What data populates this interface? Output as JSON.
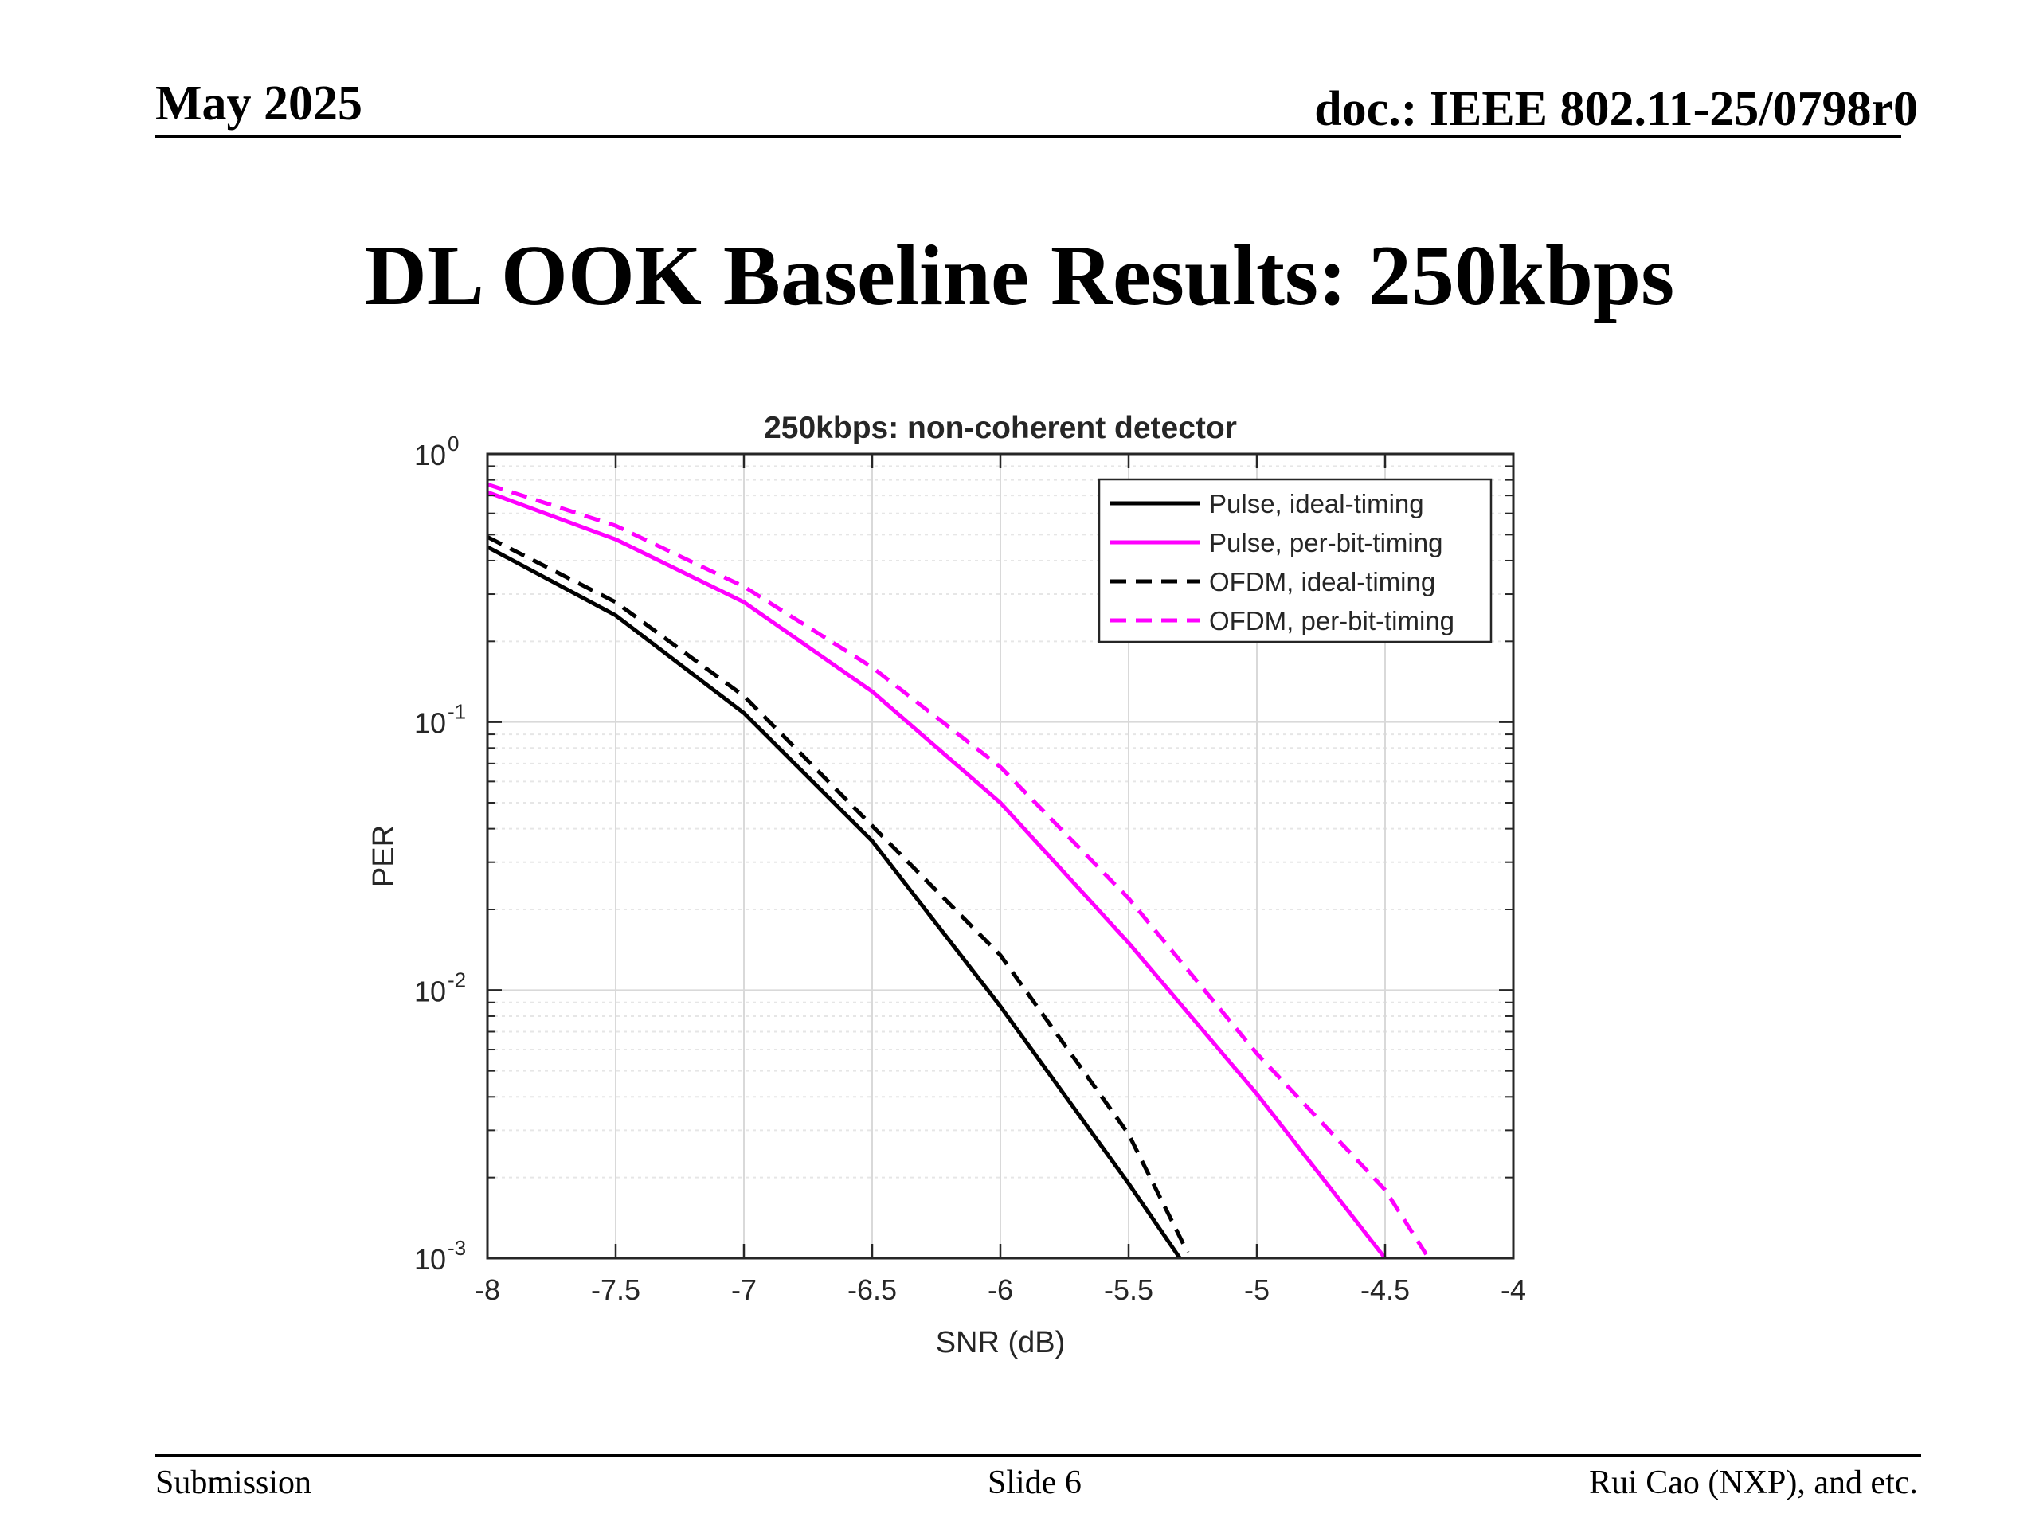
{
  "header": {
    "date": "May 2025",
    "doc_id": "doc.: IEEE 802.11-25/0798r0"
  },
  "slide_title": "DL OOK Baseline Results: 250kbps",
  "footer": {
    "left": "Submission",
    "center": "Slide 6",
    "right": "Rui Cao (NXP), and etc."
  },
  "chart_data": {
    "type": "line",
    "title": "250kbps: non-coherent detector",
    "xlabel": "SNR (dB)",
    "ylabel": "PER",
    "xlim": [
      -8,
      -4
    ],
    "ylim": [
      0.001,
      1
    ],
    "yscale": "log",
    "grid": true,
    "legend_position": "top-right",
    "xticks": [
      -8,
      -7.5,
      -7,
      -6.5,
      -6,
      -5.5,
      -5,
      -4.5,
      -4
    ],
    "xtick_labels": [
      "-8",
      "-7.5",
      "-7",
      "-6.5",
      "-6",
      "-5.5",
      "-5",
      "-4.5",
      "-4"
    ],
    "ytick_labels": [
      {
        "value": 1,
        "base": "10",
        "exp": "0"
      },
      {
        "value": 0.1,
        "base": "10",
        "exp": "-1"
      },
      {
        "value": 0.01,
        "base": "10",
        "exp": "-2"
      },
      {
        "value": 0.001,
        "base": "10",
        "exp": "-3"
      }
    ],
    "series": [
      {
        "name": "Pulse, ideal-timing",
        "color": "#000000",
        "dash": "solid",
        "x": [
          -8,
          -7.5,
          -7,
          -6.5,
          -6,
          -5.5,
          -5.3
        ],
        "y": [
          0.45,
          0.25,
          0.108,
          0.036,
          0.0087,
          0.0019,
          0.001
        ]
      },
      {
        "name": "Pulse, per-bit-timing",
        "color": "#ff00ff",
        "dash": "solid",
        "x": [
          -8,
          -7.5,
          -7,
          -6.5,
          -6,
          -5.5,
          -5,
          -4.5
        ],
        "y": [
          0.72,
          0.48,
          0.28,
          0.13,
          0.05,
          0.015,
          0.0041,
          0.001
        ]
      },
      {
        "name": "OFDM, ideal-timing",
        "color": "#000000",
        "dash": "dashed",
        "x": [
          -8,
          -7.5,
          -7,
          -6.5,
          -6,
          -5.5,
          -5.27
        ],
        "y": [
          0.49,
          0.28,
          0.125,
          0.041,
          0.0135,
          0.0029,
          0.00105
        ]
      },
      {
        "name": "OFDM, per-bit-timing",
        "color": "#ff00ff",
        "dash": "dashed",
        "x": [
          -8,
          -7.5,
          -7,
          -6.5,
          -6,
          -5.5,
          -5,
          -4.5,
          -4.33
        ],
        "y": [
          0.77,
          0.54,
          0.32,
          0.16,
          0.068,
          0.022,
          0.0058,
          0.0018,
          0.001
        ]
      }
    ]
  }
}
